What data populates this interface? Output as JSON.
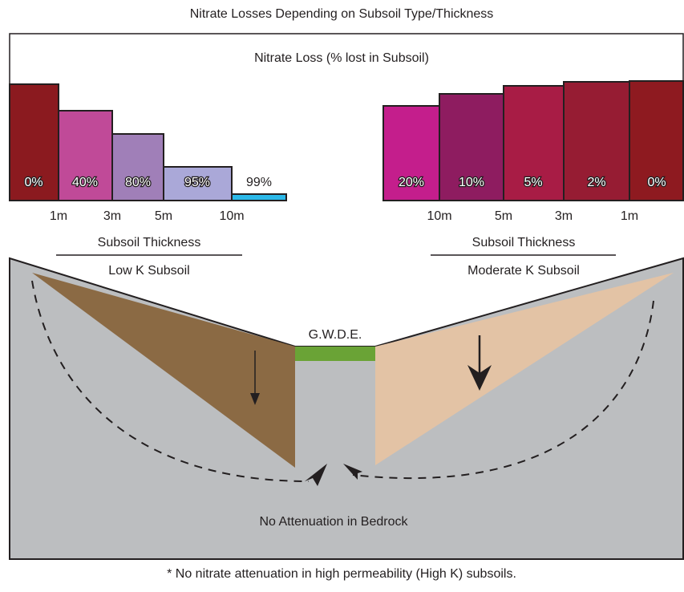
{
  "title": "Nitrate Losses Depending on Subsoil Type/Thickness",
  "panel_title": "Nitrate Loss (% lost in Subsoil)",
  "low_k": {
    "bars": [
      "0%",
      "40%",
      "80%",
      "95%",
      "99%"
    ],
    "thickness": [
      "1m",
      "3m",
      "5m",
      "10m"
    ],
    "axis_title": "Subsoil Thickness",
    "subsoil": "Low K Subsoil"
  },
  "moderate_k": {
    "bars": [
      "20%",
      "10%",
      "5%",
      "2%",
      "0%"
    ],
    "thickness": [
      "10m",
      "5m",
      "3m",
      "1m"
    ],
    "axis_title": "Subsoil Thickness",
    "subsoil": "Moderate K Subsoil"
  },
  "gwde": "G.W.D.E.",
  "bedrock": "No Attenuation in Bedrock",
  "footnote": "* No nitrate attenuation in high permeability (High K) subsoils."
}
